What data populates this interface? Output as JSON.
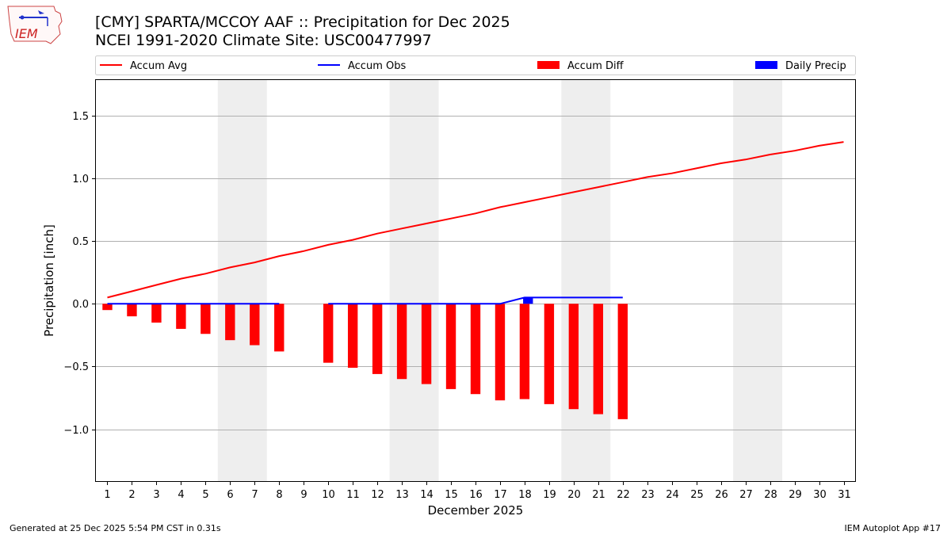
{
  "logo": {
    "text": "IEM"
  },
  "footer": {
    "generated": "Generated at 25 Dec 2025 5:54 PM CST in 0.31s",
    "app": "IEM Autoplot App #17"
  },
  "colors": {
    "avg": "#ff0000",
    "obs": "#0000ff",
    "diff": "#ff0000",
    "daily": "#0000ff",
    "weekend": "#eeeeee",
    "grid": "#b0b0b0"
  },
  "chart_data": {
    "type": "bar+line",
    "title": "[CMY] SPARTA/MCCOY AAF :: Precipitation for Dec 2025",
    "subtitle": "NCEI 1991-2020 Climate Site: USC00477997",
    "xlabel": "December 2025",
    "ylabel": "Precipitation [inch]",
    "xlim": [
      0.5,
      31.5
    ],
    "ylim": [
      -1.42,
      1.79
    ],
    "yticks": [
      -1.0,
      -0.5,
      0.0,
      0.5,
      1.0,
      1.5
    ],
    "ytick_labels": [
      "−1.0",
      "−0.5",
      "0.0",
      "0.5",
      "1.0",
      "1.5"
    ],
    "grid": "horizontal",
    "legend_position": "top",
    "days": [
      1,
      2,
      3,
      4,
      5,
      6,
      7,
      8,
      9,
      10,
      11,
      12,
      13,
      14,
      15,
      16,
      17,
      18,
      19,
      20,
      21,
      22,
      23,
      24,
      25,
      26,
      27,
      28,
      29,
      30,
      31
    ],
    "weekend_bands": [
      [
        5.5,
        7.5
      ],
      [
        12.5,
        14.5
      ],
      [
        19.5,
        21.5
      ],
      [
        26.5,
        28.5
      ]
    ],
    "series": [
      {
        "name": "Accum Avg",
        "kind": "line",
        "x": [
          1,
          2,
          3,
          4,
          5,
          6,
          7,
          8,
          9,
          10,
          11,
          12,
          13,
          14,
          15,
          16,
          17,
          18,
          19,
          20,
          21,
          22,
          23,
          24,
          25,
          26,
          27,
          28,
          29,
          30,
          31
        ],
        "values": [
          0.05,
          0.1,
          0.15,
          0.2,
          0.24,
          0.29,
          0.33,
          0.38,
          0.42,
          0.47,
          0.51,
          0.56,
          0.6,
          0.64,
          0.68,
          0.72,
          0.77,
          0.81,
          0.85,
          0.89,
          0.93,
          0.97,
          1.01,
          1.04,
          1.08,
          1.12,
          1.15,
          1.19,
          1.22,
          1.26,
          1.29
        ]
      },
      {
        "name": "Accum Obs",
        "kind": "line",
        "segments": [
          {
            "x": [
              1,
              2,
              3,
              4,
              5,
              6,
              7,
              8
            ],
            "values": [
              0,
              0,
              0,
              0,
              0,
              0,
              0,
              0
            ]
          },
          {
            "x": [
              10,
              11,
              12,
              13,
              14,
              15,
              16,
              17,
              18,
              19,
              20,
              21,
              22
            ],
            "values": [
              0,
              0,
              0,
              0,
              0,
              0,
              0,
              0,
              0.05,
              0.05,
              0.05,
              0.05,
              0.05
            ]
          }
        ]
      },
      {
        "name": "Accum Diff",
        "kind": "bar",
        "x": [
          1,
          2,
          3,
          4,
          5,
          6,
          7,
          8,
          10,
          11,
          12,
          13,
          14,
          15,
          16,
          17,
          18,
          19,
          20,
          21,
          22
        ],
        "values": [
          -0.05,
          -0.1,
          -0.15,
          -0.2,
          -0.24,
          -0.29,
          -0.33,
          -0.38,
          -0.47,
          -0.51,
          -0.56,
          -0.6,
          -0.64,
          -0.68,
          -0.72,
          -0.77,
          -0.76,
          -0.8,
          -0.84,
          -0.88,
          -0.92
        ]
      },
      {
        "name": "Daily Precip",
        "kind": "bar",
        "x": [
          18
        ],
        "values": [
          0.05
        ]
      }
    ]
  }
}
